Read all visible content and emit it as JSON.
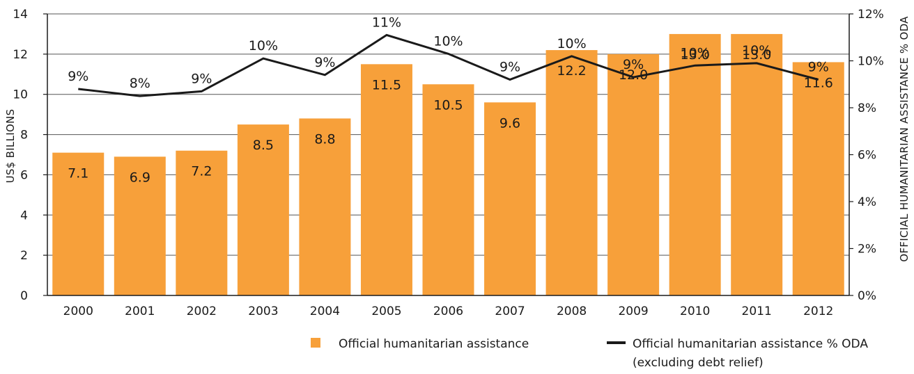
{
  "chart_data": {
    "type": "bar",
    "categories": [
      "2000",
      "2001",
      "2002",
      "2003",
      "2004",
      "2005",
      "2006",
      "2007",
      "2008",
      "2009",
      "2010",
      "2011",
      "2012"
    ],
    "series": [
      {
        "name": "Official humanitarian assistance",
        "kind": "bar",
        "axis": "left",
        "values": [
          7.1,
          6.9,
          7.2,
          8.5,
          8.8,
          11.5,
          10.5,
          9.6,
          12.2,
          12.0,
          13.0,
          13.0,
          11.6
        ],
        "labels": [
          "7.1",
          "6.9",
          "7.2",
          "8.5",
          "8.8",
          "11.5",
          "10.5",
          "9.6",
          "12.2",
          "12.0",
          "13.0",
          "13.0",
          "11.6"
        ],
        "color": "#F7A03A"
      },
      {
        "name": "Official humanitarian assistance % ODA",
        "name_line2": "(excluding debt relief)",
        "kind": "line",
        "axis": "right",
        "values": [
          8.8,
          8.5,
          8.7,
          10.1,
          9.4,
          11.1,
          10.3,
          9.2,
          10.2,
          9.3,
          9.8,
          9.9,
          9.2
        ],
        "labels": [
          "9%",
          "8%",
          "9%",
          "10%",
          "9%",
          "11%",
          "10%",
          "9%",
          "10%",
          "9%",
          "10%",
          "10%",
          "9%"
        ],
        "color": "#1a1a1a"
      }
    ],
    "ylabel": "US$ BILLIONS",
    "y2label": "OFFICIAL HUMANITARIAN ASSISTANCE % ODA",
    "ylim": [
      0,
      14
    ],
    "yticks": [
      "0",
      "2",
      "4",
      "6",
      "8",
      "10",
      "12",
      "14"
    ],
    "y2lim": [
      0,
      12
    ],
    "y2ticks": [
      "0%",
      "2%",
      "4%",
      "6%",
      "8%",
      "10%",
      "12%"
    ],
    "grid": true,
    "legend_position": "bottom-right"
  }
}
